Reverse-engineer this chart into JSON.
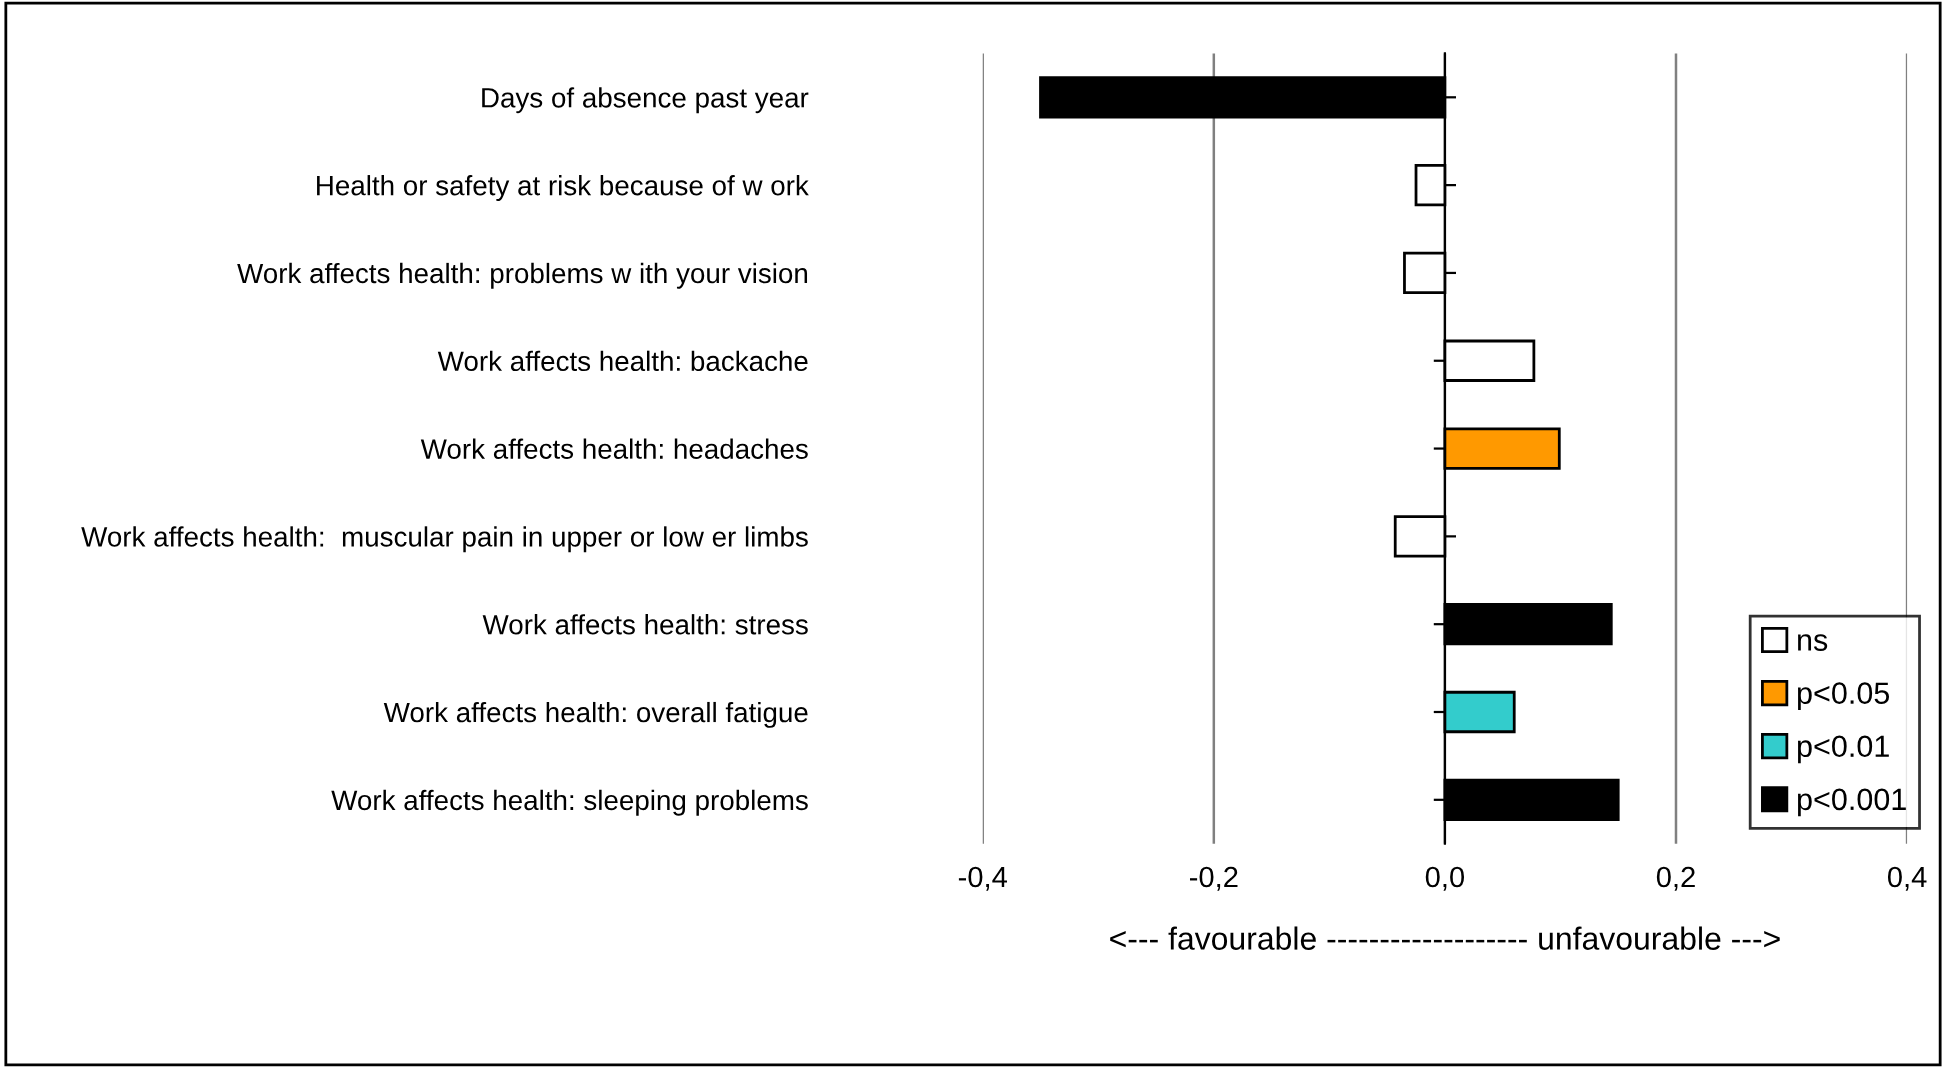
{
  "chart_data": {
    "type": "bar",
    "orientation": "horizontal",
    "categories": [
      "Days of absence past year",
      "Health or safety at risk because of w ork",
      "Work affects health: problems w ith your vision",
      "Work affects health: backache",
      "Work affects health: headaches",
      "Work affects health:  muscular pain in upper or low er limbs",
      "Work affects health: stress",
      "Work affects health: overall fatigue",
      "Work affects health: sleeping problems"
    ],
    "series": [
      {
        "name": "ns",
        "color": "#ffffff",
        "values": [
          null,
          -0.025,
          -0.035,
          0.077,
          null,
          -0.043,
          null,
          null,
          null
        ]
      },
      {
        "name": "p<0.05",
        "color": "#ff9900",
        "values": [
          null,
          null,
          null,
          null,
          0.099,
          null,
          null,
          null,
          null
        ]
      },
      {
        "name": "p<0.01",
        "color": "#33cccc",
        "values": [
          null,
          null,
          null,
          null,
          null,
          null,
          null,
          0.06,
          null
        ]
      },
      {
        "name": "p<0.001",
        "color": "#000000",
        "values": [
          -0.35,
          null,
          null,
          null,
          null,
          null,
          0.144,
          null,
          0.15
        ]
      }
    ],
    "xlim": [
      -0.4,
      0.4
    ],
    "xticks": [
      {
        "value": -0.4,
        "label": "-0,4"
      },
      {
        "value": -0.2,
        "label": "-0,2"
      },
      {
        "value": 0,
        "label": "0,0"
      },
      {
        "value": 0.2,
        "label": "0,2"
      },
      {
        "value": 0.4,
        "label": "0,4"
      }
    ],
    "xlabel": "<--- favourable ------------------- unfavourable --->",
    "grid": "x",
    "legend": "bottom right"
  }
}
